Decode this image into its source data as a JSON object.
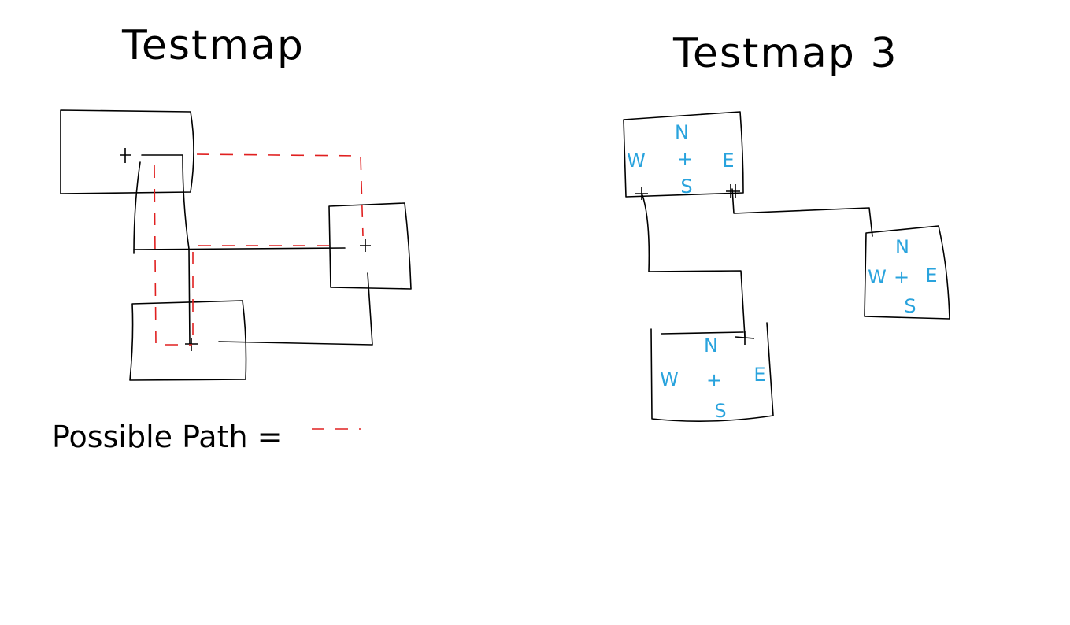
{
  "left_map": {
    "title": "Testmap",
    "legend_label": "Possible Path =",
    "path_color": "#e02020"
  },
  "right_map": {
    "title": "Testmap 3",
    "compass_color": "#29a3dd",
    "rooms": [
      {
        "n": "N",
        "w": "W",
        "c": "+",
        "e": "E",
        "s": "S"
      },
      {
        "n": "N",
        "w": "W",
        "c": "+",
        "e": "E",
        "s": "S"
      },
      {
        "n": "N",
        "w": "W",
        "c": "+",
        "e": "E",
        "s": "S"
      }
    ]
  }
}
